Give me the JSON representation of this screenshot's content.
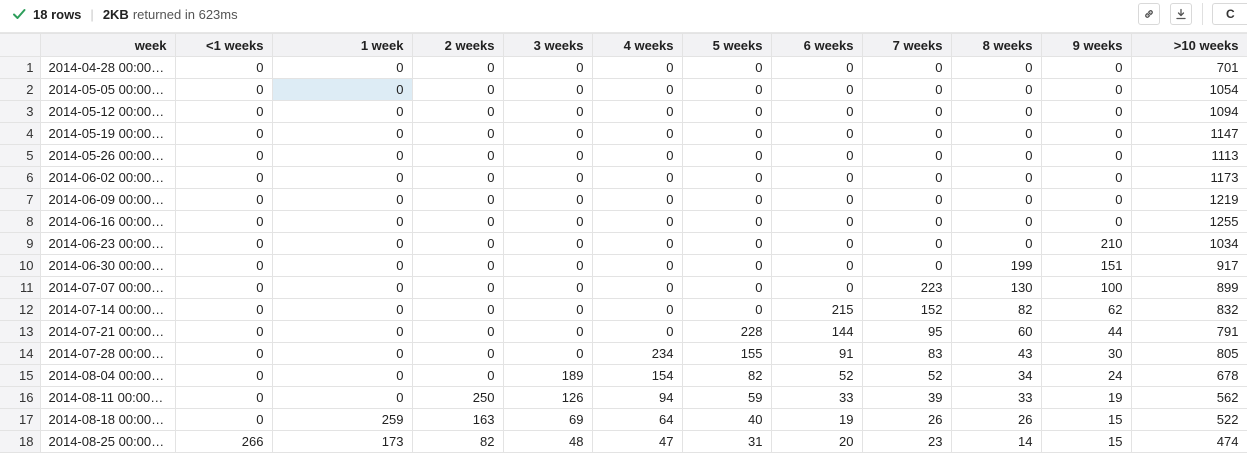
{
  "status": {
    "rows": "18 rows",
    "bytes": "2KB",
    "returned": "returned in 623ms"
  },
  "toolbar": {
    "copy_label": "C"
  },
  "columns": [
    "week",
    "<1 weeks",
    "1 week",
    "2 weeks",
    "3 weeks",
    "4 weeks",
    "5 weeks",
    "6 weeks",
    "7 weeks",
    "8 weeks",
    "9 weeks",
    ">10 weeks"
  ],
  "rows": [
    [
      "1",
      "2014-04-28 00:00:…",
      "0",
      "0",
      "0",
      "0",
      "0",
      "0",
      "0",
      "0",
      "0",
      "0",
      "701"
    ],
    [
      "2",
      "2014-05-05 00:00:…",
      "0",
      "0",
      "0",
      "0",
      "0",
      "0",
      "0",
      "0",
      "0",
      "0",
      "1054"
    ],
    [
      "3",
      "2014-05-12 00:00:…",
      "0",
      "0",
      "0",
      "0",
      "0",
      "0",
      "0",
      "0",
      "0",
      "0",
      "1094"
    ],
    [
      "4",
      "2014-05-19 00:00:…",
      "0",
      "0",
      "0",
      "0",
      "0",
      "0",
      "0",
      "0",
      "0",
      "0",
      "1147"
    ],
    [
      "5",
      "2014-05-26 00:00:…",
      "0",
      "0",
      "0",
      "0",
      "0",
      "0",
      "0",
      "0",
      "0",
      "0",
      "1113"
    ],
    [
      "6",
      "2014-06-02 00:00:…",
      "0",
      "0",
      "0",
      "0",
      "0",
      "0",
      "0",
      "0",
      "0",
      "0",
      "1173"
    ],
    [
      "7",
      "2014-06-09 00:00:…",
      "0",
      "0",
      "0",
      "0",
      "0",
      "0",
      "0",
      "0",
      "0",
      "0",
      "1219"
    ],
    [
      "8",
      "2014-06-16 00:00:…",
      "0",
      "0",
      "0",
      "0",
      "0",
      "0",
      "0",
      "0",
      "0",
      "0",
      "1255"
    ],
    [
      "9",
      "2014-06-23 00:00:…",
      "0",
      "0",
      "0",
      "0",
      "0",
      "0",
      "0",
      "0",
      "0",
      "210",
      "1034"
    ],
    [
      "10",
      "2014-06-30 00:00:…",
      "0",
      "0",
      "0",
      "0",
      "0",
      "0",
      "0",
      "0",
      "199",
      "151",
      "917"
    ],
    [
      "11",
      "2014-07-07 00:00:…",
      "0",
      "0",
      "0",
      "0",
      "0",
      "0",
      "0",
      "223",
      "130",
      "100",
      "899"
    ],
    [
      "12",
      "2014-07-14 00:00:…",
      "0",
      "0",
      "0",
      "0",
      "0",
      "0",
      "215",
      "152",
      "82",
      "62",
      "832"
    ],
    [
      "13",
      "2014-07-21 00:00:…",
      "0",
      "0",
      "0",
      "0",
      "0",
      "228",
      "144",
      "95",
      "60",
      "44",
      "791"
    ],
    [
      "14",
      "2014-07-28 00:00:…",
      "0",
      "0",
      "0",
      "0",
      "234",
      "155",
      "91",
      "83",
      "43",
      "30",
      "805"
    ],
    [
      "15",
      "2014-08-04 00:00:…",
      "0",
      "0",
      "0",
      "189",
      "154",
      "82",
      "52",
      "52",
      "34",
      "24",
      "678"
    ],
    [
      "16",
      "2014-08-11 00:00:…",
      "0",
      "0",
      "250",
      "126",
      "94",
      "59",
      "33",
      "39",
      "33",
      "19",
      "562"
    ],
    [
      "17",
      "2014-08-18 00:00:…",
      "0",
      "259",
      "163",
      "69",
      "64",
      "40",
      "19",
      "26",
      "26",
      "15",
      "522"
    ],
    [
      "18",
      "2014-08-25 00:00:…",
      "266",
      "173",
      "82",
      "48",
      "47",
      "31",
      "20",
      "23",
      "14",
      "15",
      "474"
    ]
  ],
  "selected_cell": {
    "row": 2,
    "column": "1 week"
  },
  "icons": {
    "status": "checkmark-icon",
    "share": "link-icon",
    "export": "download-icon"
  },
  "colors": {
    "success": "#2e9e5b",
    "selected_cell": "#ddecf5",
    "header_bg": "#f2f2f4"
  }
}
